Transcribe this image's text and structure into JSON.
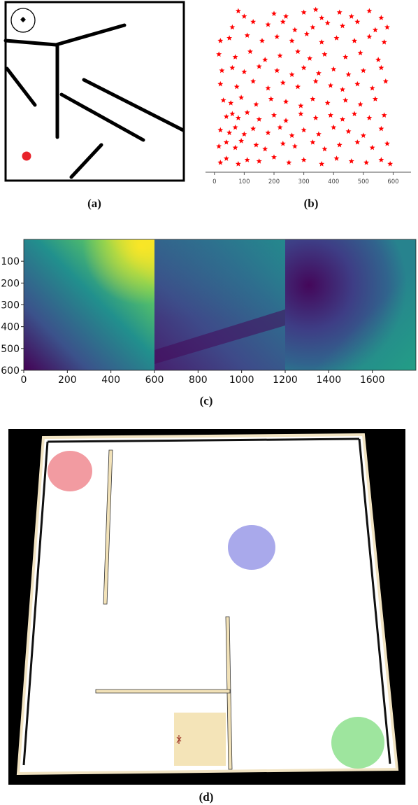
{
  "captions": {
    "a": "(a)",
    "b": "(b)",
    "c": "(c)",
    "d": "(d)"
  },
  "colors": {
    "wall": "#000000",
    "marker_red": "#e8232b",
    "goal_red": "#f08a90",
    "goal_blue": "#9a9ae8",
    "goal_green": "#8de08d",
    "start_square": "#f4e4b8",
    "floor": "#ffffff",
    "background_d": "#000000",
    "viridis_yellow": "#fde725",
    "viridis_purple": "#440154"
  },
  "panel_a": {
    "icon": "target-circle-icon",
    "start": "red-dot"
  },
  "panel_d": {
    "goals": [
      "red",
      "blue",
      "green"
    ],
    "start_tile": "tan-square",
    "agent_icon": "ant-agent-icon"
  },
  "chart_data": [
    {
      "type": "scatter",
      "marker": "star",
      "color": "#ff0000",
      "xlim": [
        -30,
        660
      ],
      "xticks": [
        "0",
        "100",
        "200",
        "300",
        "400",
        "500",
        "600"
      ],
      "ylim": [
        0,
        600
      ],
      "series": [
        {
          "points": [
            [
              80,
              580
            ],
            [
              100,
              560
            ],
            [
              200,
              570
            ],
            [
              240,
              560
            ],
            [
              300,
              575
            ],
            [
              340,
              585
            ],
            [
              360,
              555
            ],
            [
              420,
              575
            ],
            [
              460,
              560
            ],
            [
              520,
              580
            ],
            [
              560,
              555
            ],
            [
              60,
              520
            ],
            [
              130,
              540
            ],
            [
              180,
              530
            ],
            [
              230,
              540
            ],
            [
              270,
              510
            ],
            [
              330,
              520
            ],
            [
              380,
              535
            ],
            [
              430,
              525
            ],
            [
              480,
              540
            ],
            [
              540,
              510
            ],
            [
              580,
              520
            ],
            [
              20,
              470
            ],
            [
              50,
              480
            ],
            [
              110,
              490
            ],
            [
              160,
              470
            ],
            [
              210,
              485
            ],
            [
              260,
              470
            ],
            [
              310,
              495
            ],
            [
              360,
              465
            ],
            [
              410,
              480
            ],
            [
              470,
              470
            ],
            [
              520,
              485
            ],
            [
              570,
              465
            ],
            [
              15,
              420
            ],
            [
              70,
              410
            ],
            [
              120,
              430
            ],
            [
              170,
              400
            ],
            [
              220,
              415
            ],
            [
              280,
              430
            ],
            [
              320,
              405
            ],
            [
              370,
              420
            ],
            [
              440,
              410
            ],
            [
              490,
              425
            ],
            [
              550,
              400
            ],
            [
              25,
              360
            ],
            [
              60,
              370
            ],
            [
              100,
              355
            ],
            [
              150,
              375
            ],
            [
              210,
              360
            ],
            [
              260,
              345
            ],
            [
              300,
              370
            ],
            [
              350,
              350
            ],
            [
              400,
              365
            ],
            [
              450,
              345
            ],
            [
              500,
              360
            ],
            [
              560,
              370
            ],
            [
              20,
              310
            ],
            [
              75,
              300
            ],
            [
              130,
              320
            ],
            [
              180,
              295
            ],
            [
              230,
              315
            ],
            [
              280,
              300
            ],
            [
              340,
              320
            ],
            [
              390,
              305
            ],
            [
              430,
              290
            ],
            [
              480,
              310
            ],
            [
              530,
              295
            ],
            [
              575,
              320
            ],
            [
              30,
              250
            ],
            [
              55,
              240
            ],
            [
              90,
              260
            ],
            [
              140,
              235
            ],
            [
              190,
              255
            ],
            [
              240,
              245
            ],
            [
              290,
              230
            ],
            [
              330,
              255
            ],
            [
              380,
              240
            ],
            [
              440,
              250
            ],
            [
              490,
              235
            ],
            [
              540,
              255
            ],
            [
              40,
              190
            ],
            [
              60,
              200
            ],
            [
              80,
              185
            ],
            [
              110,
              205
            ],
            [
              150,
              180
            ],
            [
              200,
              195
            ],
            [
              240,
              175
            ],
            [
              290,
              200
            ],
            [
              340,
              185
            ],
            [
              390,
              195
            ],
            [
              430,
              180
            ],
            [
              470,
              200
            ],
            [
              520,
              185
            ],
            [
              570,
              195
            ],
            [
              20,
              140
            ],
            [
              50,
              130
            ],
            [
              70,
              150
            ],
            [
              100,
              125
            ],
            [
              130,
              145
            ],
            [
              180,
              130
            ],
            [
              220,
              150
            ],
            [
              260,
              120
            ],
            [
              300,
              140
            ],
            [
              350,
              125
            ],
            [
              400,
              150
            ],
            [
              450,
              135
            ],
            [
              500,
              120
            ],
            [
              560,
              145
            ],
            [
              15,
              80
            ],
            [
              40,
              95
            ],
            [
              70,
              75
            ],
            [
              90,
              100
            ],
            [
              140,
              85
            ],
            [
              170,
              70
            ],
            [
              230,
              90
            ],
            [
              270,
              80
            ],
            [
              330,
              95
            ],
            [
              370,
              70
            ],
            [
              420,
              85
            ],
            [
              480,
              95
            ],
            [
              530,
              75
            ],
            [
              580,
              90
            ],
            [
              20,
              20
            ],
            [
              40,
              35
            ],
            [
              80,
              15
            ],
            [
              110,
              30
            ],
            [
              150,
              25
            ],
            [
              200,
              40
            ],
            [
              250,
              20
            ],
            [
              300,
              30
            ],
            [
              360,
              15
            ],
            [
              410,
              35
            ],
            [
              460,
              25
            ],
            [
              510,
              20
            ],
            [
              560,
              30
            ],
            [
              590,
              15
            ]
          ]
        }
      ]
    },
    {
      "type": "heatmap",
      "colormap": "viridis",
      "xlim": [
        0,
        1800
      ],
      "ylim": [
        600,
        0
      ],
      "xticks": [
        "0",
        "200",
        "400",
        "600",
        "800",
        "1000",
        "1200",
        "1400",
        "1600"
      ],
      "yticks": [
        "100",
        "200",
        "300",
        "400",
        "500",
        "600"
      ],
      "panels": [
        {
          "x_range": [
            0,
            600
          ],
          "high_corner": "top-right",
          "low_corner": "bottom-left"
        },
        {
          "x_range": [
            600,
            1200
          ],
          "high_corner": "top-right",
          "low_band": "diagonal-bottom"
        },
        {
          "x_range": [
            1200,
            1800
          ],
          "high_corner": "bottom-right",
          "low_spot": "upper-left-center"
        }
      ]
    }
  ]
}
